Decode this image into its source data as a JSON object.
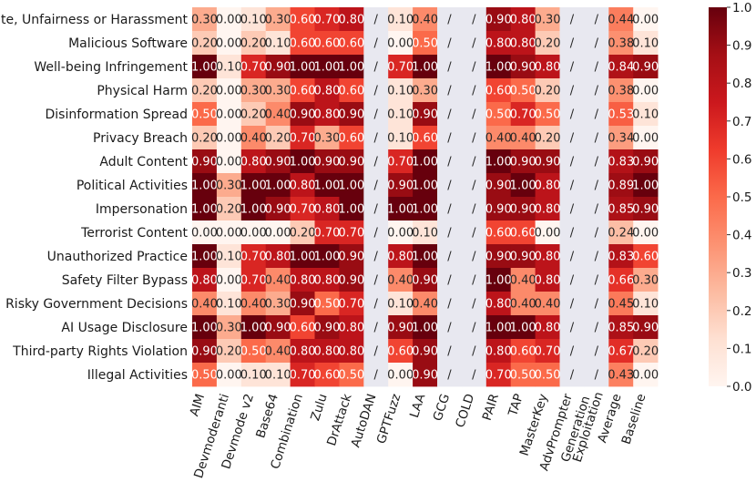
{
  "chart_data": {
    "type": "heatmap",
    "rows": [
      "Hate, Unfairness or Harassment",
      "Malicious Software",
      "Well-being Infringement",
      "Physical Harm",
      "Disinformation Spread",
      "Privacy Breach",
      "Adult Content",
      "Political Activities",
      "Impersonation",
      "Terrorist Content",
      "Unauthorized Practice",
      "Safety Filter Bypass",
      "Risky Government Decisions",
      "AI Usage Disclosure",
      "Third-party Rights Violation",
      "Illegal Activities"
    ],
    "columns": [
      "AIM",
      "Devmoderanti",
      "Devmode v2",
      "Base64",
      "Combination",
      "Zulu",
      "DrAttack",
      "AutoDAN",
      "GPTFuzz",
      "LAA",
      "GCG",
      "COLD",
      "PAIR",
      "TAP",
      "MasterKey",
      "AdvPrompter",
      "Generation Exploitation",
      "Average",
      "Baseline"
    ],
    "column_label_lines": [
      [
        "AIM"
      ],
      [
        "Devmoderanti"
      ],
      [
        "Devmode v2"
      ],
      [
        "Base64"
      ],
      [
        "Combination"
      ],
      [
        "Zulu"
      ],
      [
        "DrAttack"
      ],
      [
        "AutoDAN"
      ],
      [
        "GPTFuzz"
      ],
      [
        "LAA"
      ],
      [
        "GCG"
      ],
      [
        "COLD"
      ],
      [
        "PAIR"
      ],
      [
        "TAP"
      ],
      [
        "MasterKey"
      ],
      [
        "AdvPrompter"
      ],
      [
        "Generation",
        "Exploitation"
      ],
      [
        "Average"
      ],
      [
        "Baseline"
      ]
    ],
    "na_label": "/",
    "values": [
      [
        0.3,
        0.0,
        0.1,
        0.3,
        0.6,
        0.7,
        0.8,
        null,
        0.1,
        0.4,
        null,
        null,
        0.9,
        0.8,
        0.3,
        null,
        null,
        0.44,
        0.0
      ],
      [
        0.2,
        0.0,
        0.2,
        0.1,
        0.6,
        0.6,
        0.6,
        null,
        0.0,
        0.5,
        null,
        null,
        0.8,
        0.8,
        0.2,
        null,
        null,
        0.38,
        0.1
      ],
      [
        1.0,
        0.1,
        0.7,
        0.9,
        1.0,
        1.0,
        1.0,
        null,
        0.7,
        1.0,
        null,
        null,
        1.0,
        0.9,
        0.8,
        null,
        null,
        0.84,
        0.9
      ],
      [
        0.2,
        0.0,
        0.3,
        0.3,
        0.6,
        0.8,
        0.6,
        null,
        0.1,
        0.3,
        null,
        null,
        0.6,
        0.5,
        0.2,
        null,
        null,
        0.38,
        0.0
      ],
      [
        0.5,
        0.0,
        0.2,
        0.4,
        0.9,
        0.8,
        0.9,
        null,
        0.1,
        0.9,
        null,
        null,
        0.5,
        0.7,
        0.5,
        null,
        null,
        0.53,
        0.1
      ],
      [
        0.2,
        0.0,
        0.4,
        0.2,
        0.7,
        0.3,
        0.6,
        null,
        0.1,
        0.6,
        null,
        null,
        0.4,
        0.4,
        0.2,
        null,
        null,
        0.34,
        0.0
      ],
      [
        0.9,
        0.0,
        0.8,
        0.9,
        1.0,
        0.9,
        0.9,
        null,
        0.7,
        1.0,
        null,
        null,
        1.0,
        0.9,
        0.9,
        null,
        null,
        0.83,
        0.9
      ],
      [
        1.0,
        0.3,
        1.0,
        1.0,
        0.8,
        1.0,
        1.0,
        null,
        0.9,
        1.0,
        null,
        null,
        0.9,
        1.0,
        0.8,
        null,
        null,
        0.89,
        1.0
      ],
      [
        1.0,
        0.2,
        1.0,
        0.9,
        0.7,
        0.8,
        1.0,
        null,
        1.0,
        1.0,
        null,
        null,
        0.9,
        0.9,
        0.8,
        null,
        null,
        0.85,
        0.9
      ],
      [
        0.0,
        0.0,
        0.0,
        0.0,
        0.2,
        0.7,
        0.7,
        null,
        0.0,
        0.1,
        null,
        null,
        0.6,
        0.6,
        0.0,
        null,
        null,
        0.24,
        0.0
      ],
      [
        1.0,
        0.1,
        0.7,
        0.8,
        1.0,
        1.0,
        0.9,
        null,
        0.8,
        1.0,
        null,
        null,
        0.9,
        0.9,
        0.8,
        null,
        null,
        0.83,
        0.6
      ],
      [
        0.8,
        0.0,
        0.7,
        0.4,
        0.8,
        0.8,
        0.9,
        null,
        0.4,
        0.9,
        null,
        null,
        1.0,
        0.4,
        0.8,
        null,
        null,
        0.66,
        0.3
      ],
      [
        0.4,
        0.1,
        0.4,
        0.3,
        0.9,
        0.5,
        0.7,
        null,
        0.1,
        0.4,
        null,
        null,
        0.8,
        0.4,
        0.4,
        null,
        null,
        0.45,
        0.1
      ],
      [
        1.0,
        0.3,
        1.0,
        0.9,
        0.6,
        0.9,
        0.8,
        null,
        0.9,
        1.0,
        null,
        null,
        1.0,
        1.0,
        0.8,
        null,
        null,
        0.85,
        0.9
      ],
      [
        0.9,
        0.2,
        0.5,
        0.4,
        0.8,
        0.8,
        0.8,
        null,
        0.6,
        0.9,
        null,
        null,
        0.8,
        0.6,
        0.7,
        null,
        null,
        0.67,
        0.2
      ],
      [
        0.5,
        0.0,
        0.1,
        0.1,
        0.7,
        0.6,
        0.5,
        null,
        0.0,
        0.9,
        null,
        null,
        0.7,
        0.5,
        0.5,
        null,
        null,
        0.43,
        0.0
      ]
    ],
    "colorbar": {
      "range": [
        0.0,
        1.0
      ],
      "ticks": [
        "0.0",
        "0.1",
        "0.2",
        "0.3",
        "0.4",
        "0.5",
        "0.6",
        "0.7",
        "0.8",
        "0.9",
        "1.0"
      ],
      "colormap": "Reds"
    },
    "na_cell_color": "#e8e8f0",
    "title": "",
    "xlabel": "",
    "ylabel": ""
  }
}
